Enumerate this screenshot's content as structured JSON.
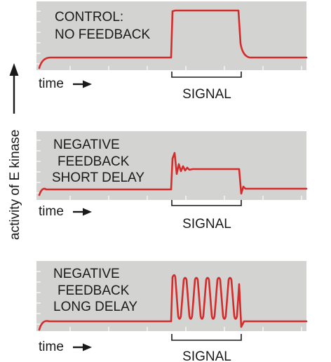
{
  "y_axis_label": "activity of E kinase",
  "panels": [
    {
      "id": "control",
      "label_lines": [
        "CONTROL:",
        "NO FEEDBACK"
      ],
      "time_label": "time",
      "signal_label": "SIGNAL"
    },
    {
      "id": "short-delay",
      "label_lines": [
        "NEGATIVE",
        "FEEDBACK",
        "SHORT DELAY"
      ],
      "time_label": "time",
      "signal_label": "SIGNAL"
    },
    {
      "id": "long-delay",
      "label_lines": [
        "NEGATIVE",
        "FEEDBACK",
        "LONG DELAY"
      ],
      "time_label": "time",
      "signal_label": "SIGNAL"
    }
  ],
  "colors": {
    "panel_background": "#d3d3d1",
    "trace": "#d42b2b",
    "text": "#1a1a1a"
  }
}
